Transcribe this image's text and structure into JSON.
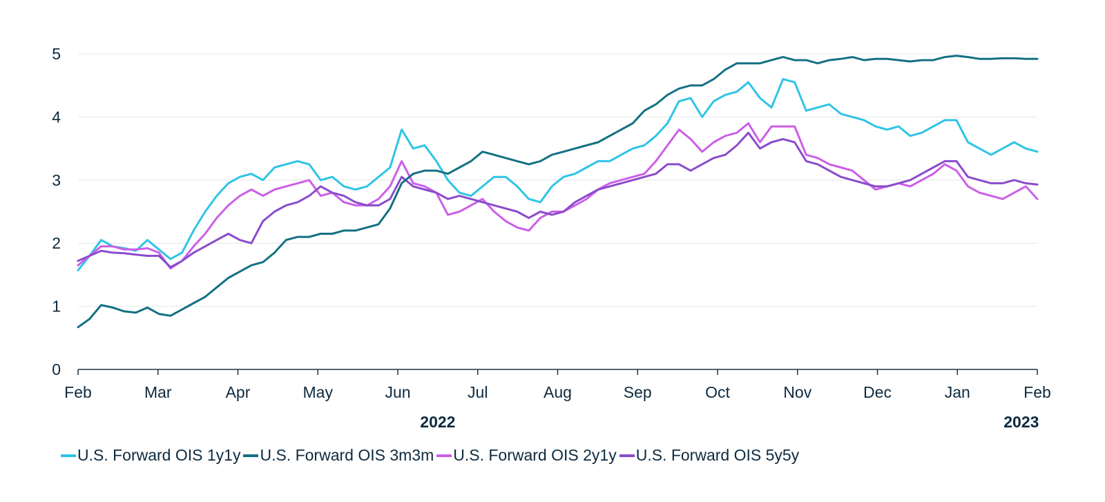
{
  "chart_data": {
    "type": "line",
    "title": "",
    "xlabel": "",
    "ylabel": "",
    "ylim": [
      0,
      5
    ],
    "yticks": [
      0,
      1,
      2,
      3,
      4,
      5
    ],
    "months": [
      "Feb",
      "Mar",
      "Apr",
      "May",
      "Jun",
      "Jul",
      "Aug",
      "Sep",
      "Oct",
      "Nov",
      "Dec",
      "Jan",
      "Feb"
    ],
    "years": [
      {
        "label": "2022",
        "month_index": 4.5
      },
      {
        "label": "2023",
        "month_index": 11.8
      }
    ],
    "grid": true,
    "legend_position": "bottom-left",
    "series": [
      {
        "name": "U.S. Forward OIS 1y1y",
        "color": "#2ec4e6",
        "values": [
          1.57,
          1.8,
          2.05,
          1.95,
          1.92,
          1.88,
          2.05,
          1.9,
          1.75,
          1.85,
          2.2,
          2.5,
          2.75,
          2.95,
          3.05,
          3.1,
          3.0,
          3.2,
          3.25,
          3.3,
          3.25,
          3.0,
          3.05,
          2.9,
          2.85,
          2.9,
          3.05,
          3.2,
          3.8,
          3.5,
          3.55,
          3.3,
          3.0,
          2.8,
          2.75,
          2.9,
          3.05,
          3.05,
          2.9,
          2.7,
          2.65,
          2.9,
          3.05,
          3.1,
          3.2,
          3.3,
          3.3,
          3.4,
          3.5,
          3.55,
          3.7,
          3.9,
          4.25,
          4.3,
          4.0,
          4.25,
          4.35,
          4.4,
          4.55,
          4.3,
          4.15,
          4.6,
          4.55,
          4.1,
          4.15,
          4.2,
          4.05,
          4.0,
          3.95,
          3.85,
          3.8,
          3.85,
          3.7,
          3.75,
          3.85,
          3.95,
          3.95,
          3.6,
          3.5,
          3.4,
          3.5,
          3.6,
          3.5,
          3.45
        ]
      },
      {
        "name": "U.S. Forward OIS 3m3m",
        "color": "#137083",
        "values": [
          0.67,
          0.8,
          1.02,
          0.98,
          0.92,
          0.9,
          0.98,
          0.88,
          0.85,
          0.95,
          1.05,
          1.15,
          1.3,
          1.45,
          1.55,
          1.65,
          1.7,
          1.85,
          2.05,
          2.1,
          2.1,
          2.15,
          2.15,
          2.2,
          2.2,
          2.25,
          2.3,
          2.55,
          2.95,
          3.1,
          3.15,
          3.15,
          3.1,
          3.2,
          3.3,
          3.45,
          3.4,
          3.35,
          3.3,
          3.25,
          3.3,
          3.4,
          3.45,
          3.5,
          3.55,
          3.6,
          3.7,
          3.8,
          3.9,
          4.1,
          4.2,
          4.35,
          4.45,
          4.5,
          4.5,
          4.6,
          4.75,
          4.85,
          4.85,
          4.85,
          4.9,
          4.95,
          4.9,
          4.9,
          4.85,
          4.9,
          4.92,
          4.95,
          4.9,
          4.92,
          4.92,
          4.9,
          4.88,
          4.9,
          4.9,
          4.95,
          4.97,
          4.95,
          4.92,
          4.92,
          4.93,
          4.93,
          4.92,
          4.92
        ]
      },
      {
        "name": "U.S. Forward OIS 2y1y",
        "color": "#cc5ee8",
        "values": [
          1.65,
          1.8,
          1.95,
          1.95,
          1.9,
          1.9,
          1.92,
          1.85,
          1.6,
          1.72,
          1.95,
          2.15,
          2.4,
          2.6,
          2.75,
          2.85,
          2.75,
          2.85,
          2.9,
          2.95,
          3.0,
          2.75,
          2.8,
          2.65,
          2.6,
          2.6,
          2.7,
          2.9,
          3.3,
          2.95,
          2.9,
          2.8,
          2.45,
          2.5,
          2.6,
          2.7,
          2.5,
          2.35,
          2.25,
          2.2,
          2.4,
          2.5,
          2.5,
          2.6,
          2.7,
          2.85,
          2.95,
          3.0,
          3.05,
          3.1,
          3.3,
          3.55,
          3.8,
          3.65,
          3.45,
          3.6,
          3.7,
          3.75,
          3.9,
          3.6,
          3.85,
          3.85,
          3.85,
          3.4,
          3.35,
          3.25,
          3.2,
          3.15,
          3.0,
          2.85,
          2.9,
          2.95,
          2.9,
          3.0,
          3.1,
          3.25,
          3.15,
          2.9,
          2.8,
          2.75,
          2.7,
          2.8,
          2.9,
          2.7
        ]
      },
      {
        "name": "U.S. Forward OIS 5y5y",
        "color": "#8a4bcc",
        "values": [
          1.72,
          1.8,
          1.88,
          1.85,
          1.84,
          1.82,
          1.8,
          1.8,
          1.62,
          1.72,
          1.85,
          1.95,
          2.05,
          2.15,
          2.05,
          2.0,
          2.35,
          2.5,
          2.6,
          2.65,
          2.75,
          2.9,
          2.8,
          2.75,
          2.65,
          2.6,
          2.6,
          2.7,
          3.05,
          2.9,
          2.85,
          2.8,
          2.7,
          2.75,
          2.7,
          2.65,
          2.6,
          2.55,
          2.5,
          2.4,
          2.5,
          2.45,
          2.5,
          2.65,
          2.75,
          2.85,
          2.9,
          2.95,
          3.0,
          3.05,
          3.1,
          3.25,
          3.25,
          3.15,
          3.25,
          3.35,
          3.4,
          3.55,
          3.75,
          3.5,
          3.6,
          3.65,
          3.6,
          3.3,
          3.25,
          3.15,
          3.05,
          3.0,
          2.95,
          2.9,
          2.9,
          2.95,
          3.0,
          3.1,
          3.2,
          3.3,
          3.3,
          3.05,
          3.0,
          2.95,
          2.95,
          3.0,
          2.95,
          2.93
        ]
      }
    ]
  }
}
